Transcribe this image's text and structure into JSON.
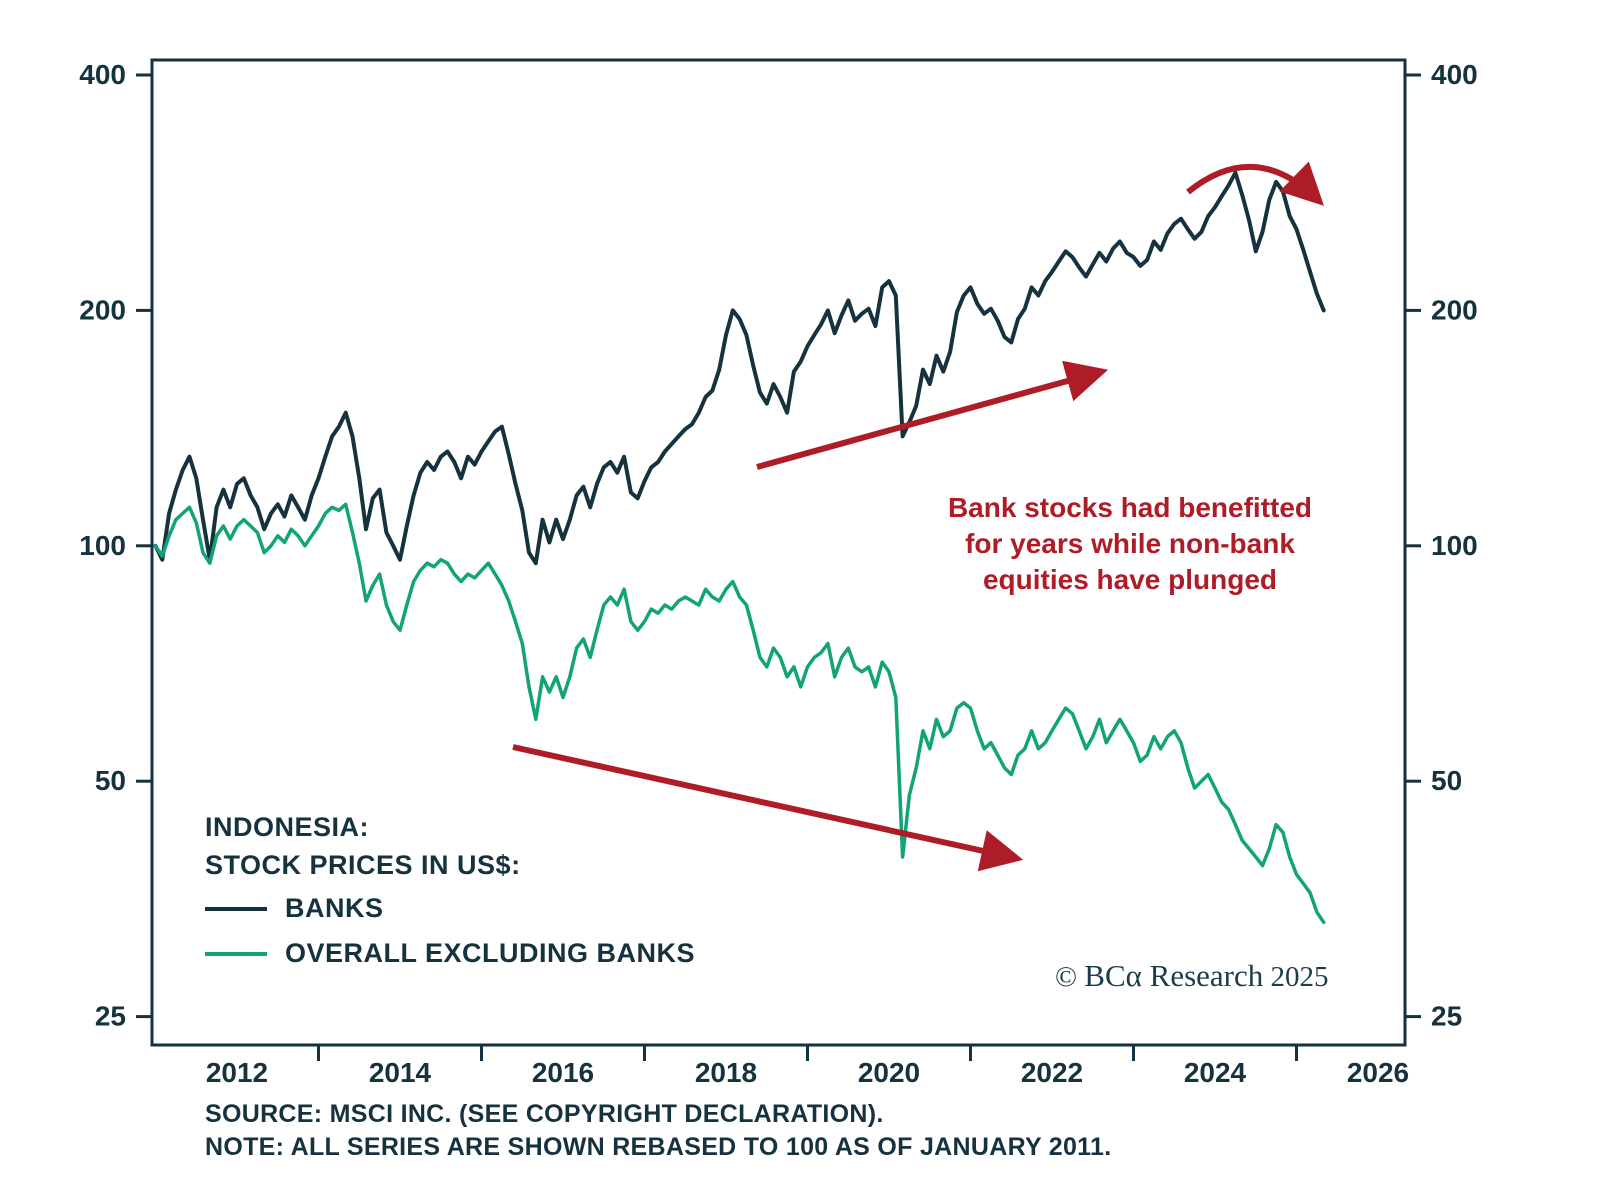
{
  "chart_data": {
    "type": "line",
    "title": "INDONESIA: STOCK PRICES IN US$",
    "y_scale": "log",
    "ylim": [
      25,
      400
    ],
    "yticks": [
      400,
      200,
      100,
      50,
      25
    ],
    "xticks": [
      2012,
      2014,
      2016,
      2018,
      2020,
      2022,
      2024,
      2026
    ],
    "x_start_year": 2011,
    "x_interval_months": 1,
    "grid": false,
    "legend_position": "bottom-left-inside",
    "series": [
      {
        "name": "BANKS",
        "color": "#16323e",
        "values": [
          100,
          96,
          110,
          118,
          125,
          130,
          122,
          108,
          96,
          112,
          118,
          112,
          120,
          122,
          116,
          112,
          105,
          110,
          113,
          109,
          116,
          112,
          108,
          116,
          122,
          130,
          138,
          142,
          148,
          138,
          122,
          105,
          115,
          118,
          104,
          100,
          96,
          106,
          116,
          124,
          128,
          125,
          130,
          132,
          128,
          122,
          130,
          127,
          132,
          136,
          140,
          142,
          131,
          120,
          111,
          98,
          95,
          108,
          101,
          108,
          102,
          108,
          116,
          119,
          112,
          120,
          126,
          128,
          124,
          130,
          117,
          115,
          121,
          126,
          128,
          132,
          135,
          138,
          141,
          143,
          148,
          155,
          158,
          168,
          186,
          200,
          195,
          186,
          170,
          157,
          152,
          161,
          155,
          148,
          167,
          172,
          180,
          186,
          192,
          200,
          187,
          197,
          206,
          194,
          198,
          201,
          191,
          214,
          218,
          209,
          138,
          144,
          151,
          168,
          161,
          175,
          167,
          177,
          199,
          209,
          214,
          204,
          198,
          201,
          194,
          185,
          182,
          195,
          201,
          214,
          209,
          218,
          224,
          231,
          238,
          234,
          227,
          221,
          229,
          237,
          231,
          240,
          245,
          237,
          234,
          228,
          232,
          245,
          239,
          251,
          258,
          262,
          254,
          247,
          252,
          264,
          271,
          280,
          289,
          300,
          281,
          261,
          238,
          252,
          277,
          292,
          284,
          264,
          254,
          239,
          224,
          210,
          200
        ]
      },
      {
        "name": "OVERALL EXCLUDING BANKS",
        "color": "#12a377",
        "values": [
          100,
          97,
          103,
          108,
          110,
          112,
          107,
          98,
          95,
          103,
          106,
          102,
          106,
          108,
          106,
          104,
          98,
          100,
          103,
          101,
          105,
          103,
          100,
          103,
          106,
          110,
          112,
          111,
          113,
          104,
          95,
          85,
          89,
          92,
          84,
          80,
          78,
          84,
          90,
          93,
          95,
          94,
          96,
          95,
          92,
          90,
          92,
          91,
          93,
          95,
          92,
          89,
          85,
          80,
          75,
          66,
          60,
          68,
          65,
          68,
          64,
          68,
          74,
          76,
          72,
          78,
          84,
          86,
          84,
          88,
          80,
          78,
          80,
          83,
          82,
          84,
          83,
          85,
          86,
          85,
          84,
          88,
          86,
          85,
          88,
          90,
          86,
          84,
          78,
          72,
          70,
          74,
          72,
          68,
          70,
          66,
          70,
          72,
          73,
          75,
          68,
          72,
          74,
          70,
          69,
          70,
          66,
          71,
          69,
          64,
          40,
          48,
          52,
          58,
          55,
          60,
          57,
          58,
          62,
          63,
          62,
          58,
          55,
          56,
          54,
          52,
          51,
          54,
          55,
          58,
          55,
          56,
          58,
          60,
          62,
          61,
          58,
          55,
          57,
          60,
          56,
          58,
          60,
          58,
          56,
          53,
          54,
          57,
          55,
          57,
          58,
          56,
          52,
          49,
          50,
          51,
          49,
          47,
          46,
          44,
          42,
          41,
          40,
          39,
          41,
          44,
          43,
          40,
          38,
          37,
          36,
          34,
          33
        ]
      }
    ],
    "annotations": {
      "note_line1": "Bank stocks had benefitted",
      "note_line2": "for years while non-bank",
      "note_line3": "equities have plunged",
      "note_color": "#ae1c27"
    }
  },
  "legend": {
    "title_line1": "INDONESIA:",
    "title_line2": "STOCK PRICES IN US$:",
    "entries": [
      {
        "label": "BANKS",
        "color": "#16323e"
      },
      {
        "label": "OVERALL EXCLUDING BANKS",
        "color": "#12a377"
      }
    ]
  },
  "copyright": {
    "symbol": "©",
    "brand": "BCα Research",
    "year": "2025"
  },
  "footer": {
    "source": "SOURCE: MSCI INC. (SEE COPYRIGHT DECLARATION).",
    "note": "NOTE: ALL SERIES ARE SHOWN REBASED TO 100 AS OF JANUARY 2011."
  },
  "colors": {
    "axis": "#16323e",
    "arrow_red": "#ae1c27",
    "background": "#ffffff"
  }
}
